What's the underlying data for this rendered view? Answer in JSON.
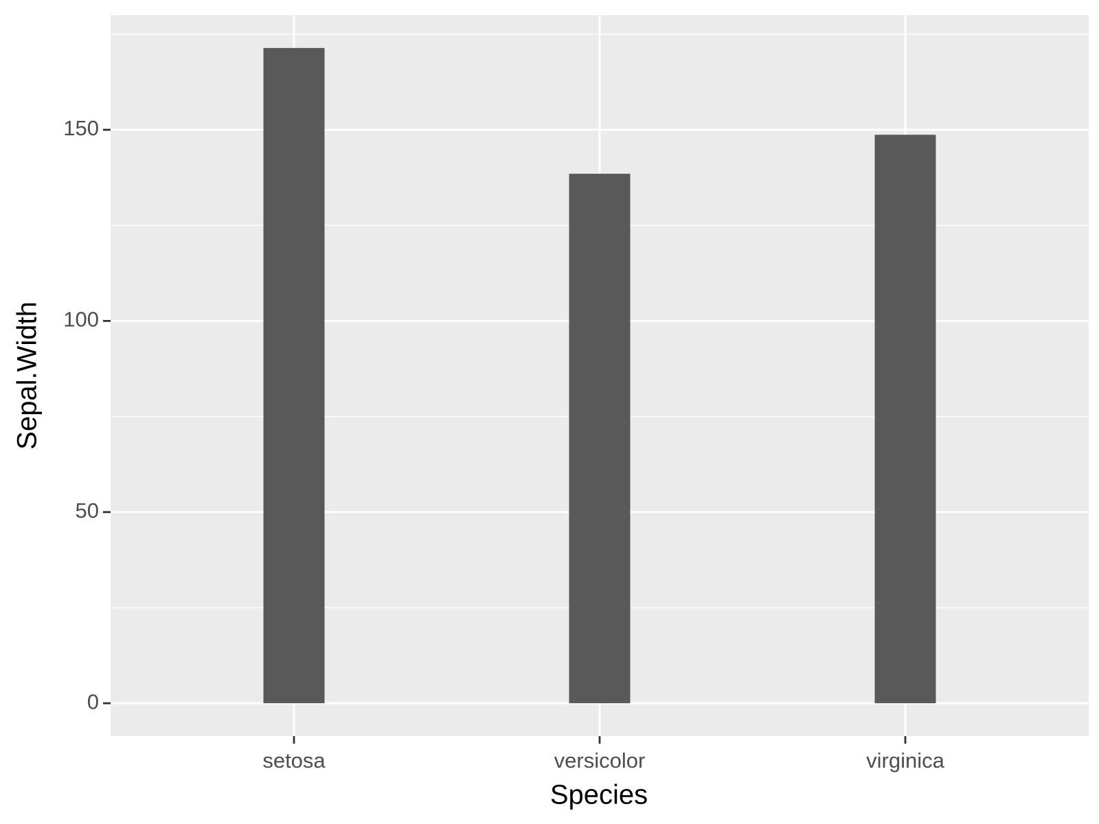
{
  "chart_data": {
    "type": "bar",
    "x_label": "Species",
    "y_label": "Sepal.Width",
    "categories": [
      "setosa",
      "versicolor",
      "virginica"
    ],
    "values": [
      171.4,
      138.5,
      148.7
    ],
    "color": "#595959",
    "ylim": [
      -8.6,
      180
    ],
    "yticks": [
      0,
      50,
      100,
      150
    ],
    "yminor": [
      25,
      75,
      125,
      175
    ],
    "grid": true
  }
}
